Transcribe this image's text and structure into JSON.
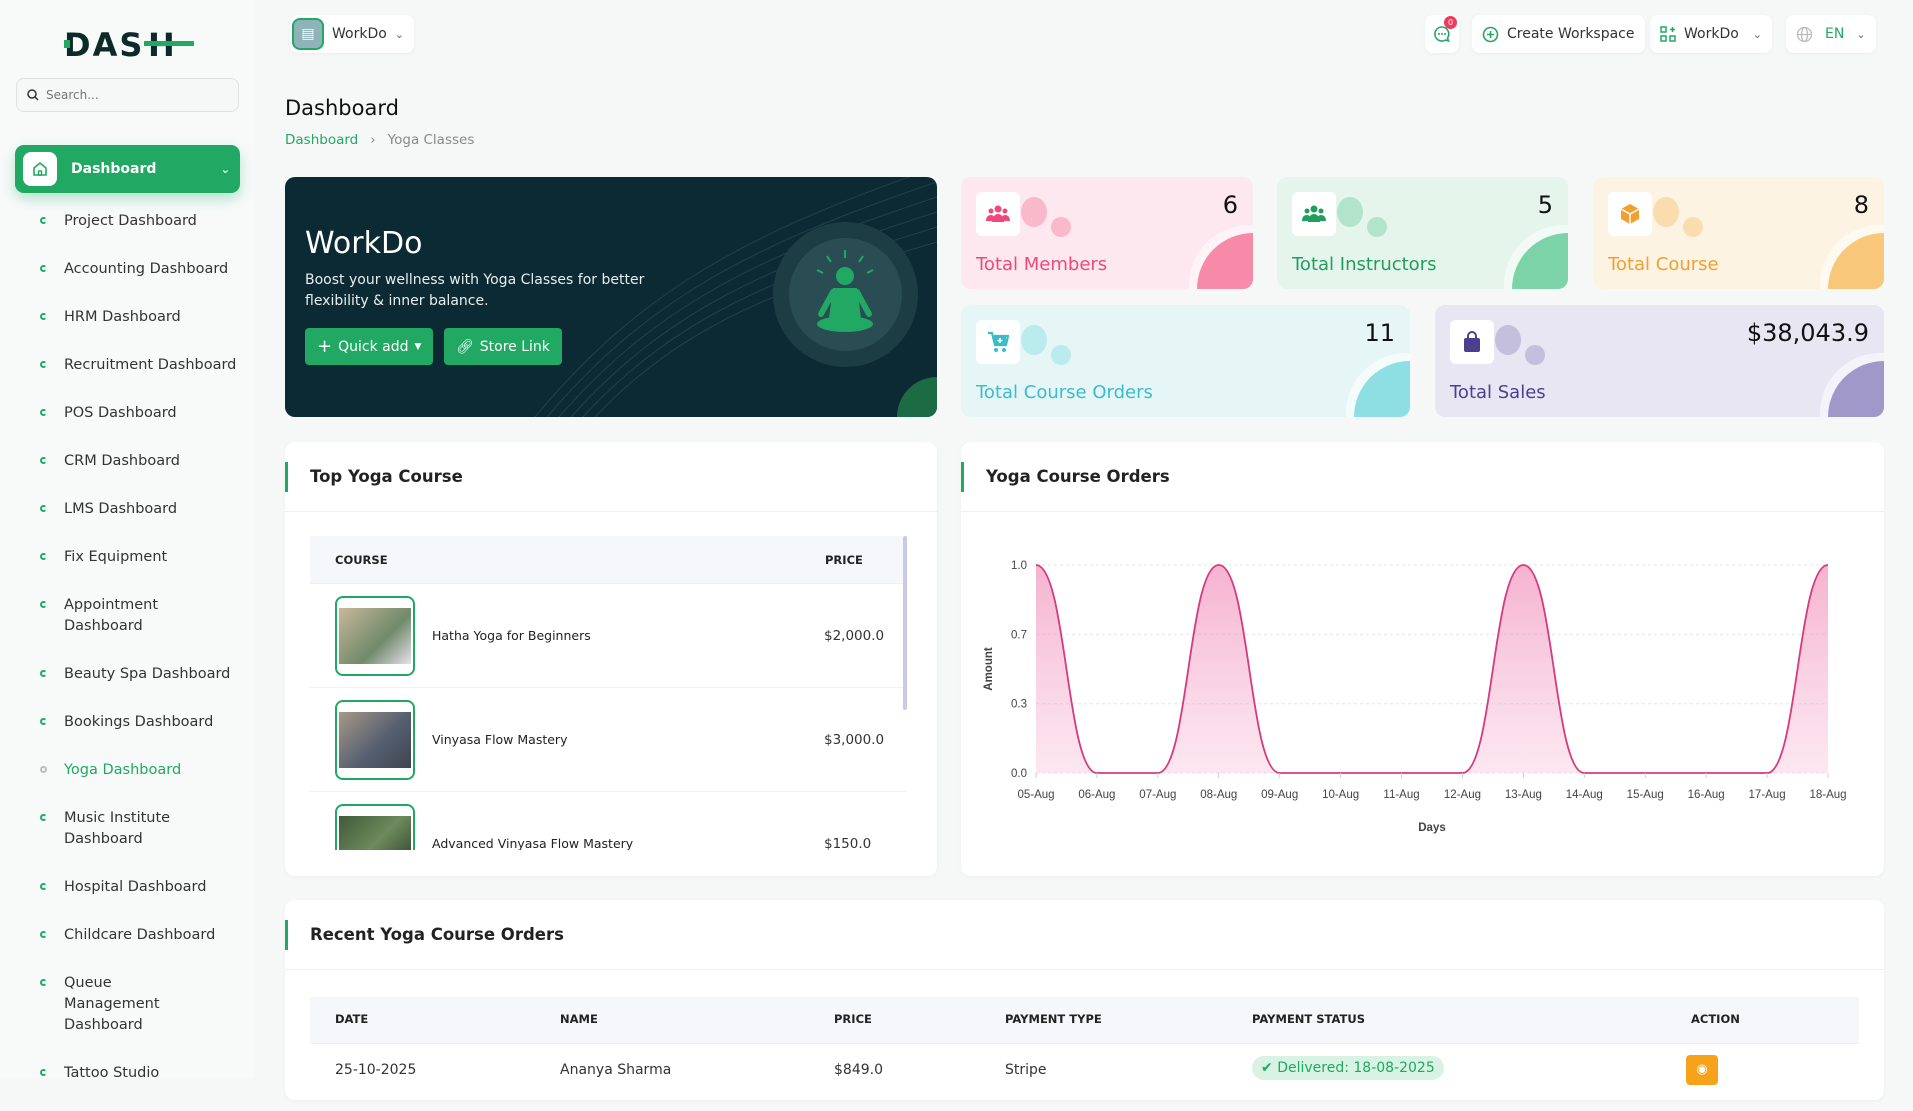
{
  "brand": {
    "logo_text": "DASH"
  },
  "sidebar": {
    "search_placeholder": "Search...",
    "active": "Dashboard",
    "items": [
      {
        "label": "Project Dashboard"
      },
      {
        "label": "Accounting Dashboard"
      },
      {
        "label": "HRM Dashboard"
      },
      {
        "label": "Recruitment Dashboard"
      },
      {
        "label": "POS Dashboard"
      },
      {
        "label": "CRM Dashboard"
      },
      {
        "label": "LMS Dashboard"
      },
      {
        "label": "Fix Equipment"
      },
      {
        "label": "Appointment Dashboard"
      },
      {
        "label": "Beauty Spa Dashboard"
      },
      {
        "label": "Bookings Dashboard"
      },
      {
        "label": "Yoga Dashboard",
        "current": true
      },
      {
        "label": "Music Institute Dashboard"
      },
      {
        "label": "Hospital Dashboard"
      },
      {
        "label": "Childcare Dashboard"
      },
      {
        "label": "Queue Management Dashboard"
      },
      {
        "label": "Tattoo Studio"
      }
    ]
  },
  "topbar": {
    "workspace": "WorkDo",
    "notifications": "0",
    "create_workspace": "Create Workspace",
    "workspace_menu": "WorkDo",
    "language": "EN"
  },
  "page": {
    "title": "Dashboard",
    "breadcrumb": [
      "Dashboard",
      "Yoga Classes"
    ]
  },
  "banner": {
    "title": "WorkDo",
    "description": "Boost your wellness with Yoga Classes for better flexibility & inner balance.",
    "quick_add": "Quick add",
    "store_link": "Store Link"
  },
  "stats": [
    {
      "label": "Total Members",
      "value": "6",
      "icon": "users-icon",
      "color": "#f0487a",
      "bg": "#fce8ee",
      "accent": "#f78aa8"
    },
    {
      "label": "Total Instructors",
      "value": "5",
      "icon": "users-icon",
      "color": "#1f9e5e",
      "bg": "#e5f5ec",
      "accent": "#7dd3a8"
    },
    {
      "label": "Total Course",
      "value": "8",
      "icon": "box-icon",
      "color": "#f0a030",
      "bg": "#fdf3e3",
      "accent": "#f8c77a"
    },
    {
      "label": "Total Course Orders",
      "value": "11",
      "icon": "cart-icon",
      "color": "#3bbdc9",
      "bg": "#e6f6f7",
      "accent": "#8ddfe4"
    },
    {
      "label": "Total Sales",
      "value": "$38,043.9",
      "icon": "bag-icon",
      "color": "#4b3f8f",
      "bg": "#e7e6f2",
      "accent": "#9f98c8"
    }
  ],
  "top_courses": {
    "title": "Top Yoga Course",
    "columns": [
      "Course",
      "Price"
    ],
    "rows": [
      {
        "name": "Hatha Yoga for Beginners",
        "price": "$2,000.0"
      },
      {
        "name": "Vinyasa Flow Mastery",
        "price": "$3,000.0"
      },
      {
        "name": "Advanced Vinyasa Flow Mastery",
        "price": "$150.0"
      }
    ]
  },
  "orders_chart": {
    "title": "Yoga Course Orders"
  },
  "chart_data": {
    "type": "area",
    "x": [
      "05-Aug",
      "06-Aug",
      "07-Aug",
      "08-Aug",
      "09-Aug",
      "10-Aug",
      "11-Aug",
      "12-Aug",
      "13-Aug",
      "14-Aug",
      "15-Aug",
      "16-Aug",
      "17-Aug",
      "18-Aug"
    ],
    "values": [
      1,
      0,
      0,
      1,
      0,
      0,
      0,
      0,
      1,
      0,
      0,
      0,
      0,
      1
    ],
    "xlabel": "Days",
    "ylabel": "Amount",
    "ylim": [
      0,
      1
    ],
    "yticks": [
      {
        "value": 0,
        "label": "0.0"
      },
      {
        "value": 0.333,
        "label": "0.3"
      },
      {
        "value": 0.667,
        "label": "0.7"
      },
      {
        "value": 1,
        "label": "1.0"
      }
    ],
    "grid": true,
    "color": "#d63a7e"
  },
  "recent_orders": {
    "title": "Recent Yoga Course Orders",
    "columns": [
      "Date",
      "Name",
      "Price",
      "Payment Type",
      "Payment Status",
      "Action"
    ],
    "rows": [
      {
        "date": "25-10-2025",
        "name": "Ananya Sharma",
        "price": "$849.0",
        "payment_type": "Stripe",
        "status": "Delivered: 18-08-2025"
      }
    ]
  }
}
